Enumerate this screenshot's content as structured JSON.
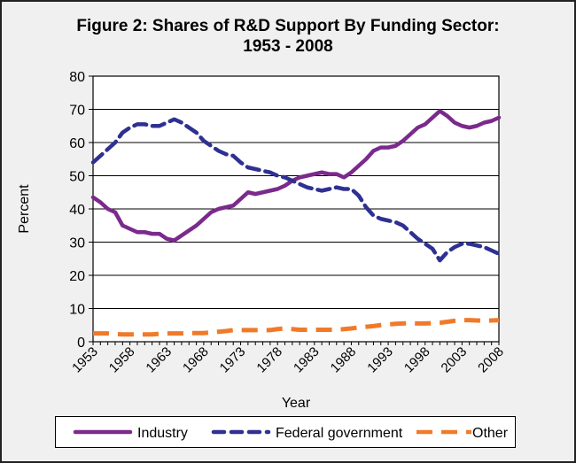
{
  "chart_data": {
    "type": "line",
    "title_line1": "Figure 2: Shares of R&D Support By Funding Sector:",
    "title_line2": "1953 - 2008",
    "xlabel": "Year",
    "ylabel": "Percent",
    "xlim": [
      1953,
      2008
    ],
    "ylim": [
      0,
      80
    ],
    "y_ticks": [
      0,
      10,
      20,
      30,
      40,
      50,
      60,
      70,
      80
    ],
    "x_ticks": [
      1953,
      1958,
      1963,
      1968,
      1973,
      1978,
      1983,
      1988,
      1993,
      1998,
      2003,
      2008
    ],
    "grid": "horizontal",
    "legend": "bottom",
    "x": [
      1953,
      1954,
      1955,
      1956,
      1957,
      1958,
      1959,
      1960,
      1961,
      1962,
      1963,
      1964,
      1965,
      1966,
      1967,
      1968,
      1969,
      1970,
      1971,
      1972,
      1973,
      1974,
      1975,
      1976,
      1977,
      1978,
      1979,
      1980,
      1981,
      1982,
      1983,
      1984,
      1985,
      1986,
      1987,
      1988,
      1989,
      1990,
      1991,
      1992,
      1993,
      1994,
      1995,
      1996,
      1997,
      1998,
      1999,
      2000,
      2001,
      2002,
      2003,
      2004,
      2005,
      2006,
      2007,
      2008
    ],
    "series": [
      {
        "name": "Industry",
        "color": "#7b2a8c",
        "dash": "solid",
        "values": [
          43.5,
          42,
          40,
          39,
          35,
          34,
          33,
          33,
          32.5,
          32.5,
          31,
          30.5,
          32,
          33.5,
          35,
          37,
          39,
          40,
          40.5,
          41,
          43,
          45,
          44.5,
          45,
          45.5,
          46,
          47,
          48.5,
          49.5,
          50,
          50.5,
          51,
          50.5,
          50.5,
          49.5,
          51,
          53,
          55,
          57.5,
          58.5,
          58.5,
          59,
          60.5,
          62.5,
          64.5,
          65.5,
          67.5,
          69.5,
          68,
          66,
          65,
          64.5,
          65,
          66,
          66.5,
          67.5
        ]
      },
      {
        "name": "Federal government",
        "color": "#2e3192",
        "dash": "dashed",
        "values": [
          54,
          56,
          58,
          60,
          63,
          64.5,
          65.5,
          65.5,
          65,
          65,
          66,
          67,
          66,
          64.5,
          63,
          60.5,
          59,
          57.5,
          56.5,
          56,
          54,
          52.5,
          52,
          51.5,
          51,
          50,
          49.5,
          48.5,
          47.5,
          46.5,
          46,
          45.5,
          46,
          46.5,
          46,
          46,
          44,
          40.5,
          38,
          37,
          36.5,
          36,
          35,
          33,
          31,
          29.5,
          28,
          24.5,
          27,
          28.5,
          29.5,
          29.5,
          29,
          28.5,
          27.5,
          26.5
        ]
      },
      {
        "name": "Other",
        "color": "#f07a28",
        "dash": "long-dashed",
        "values": [
          2.5,
          2.5,
          2.5,
          2.3,
          2.2,
          2.2,
          2.2,
          2.2,
          2.2,
          2.4,
          2.5,
          2.5,
          2.5,
          2.6,
          2.6,
          2.6,
          2.8,
          3,
          3.2,
          3.5,
          3.5,
          3.5,
          3.5,
          3.5,
          3.5,
          3.8,
          4,
          3.8,
          3.6,
          3.6,
          3.6,
          3.6,
          3.6,
          3.6,
          3.8,
          4,
          4.3,
          4.5,
          4.7,
          5,
          5.2,
          5.4,
          5.5,
          5.6,
          5.5,
          5.5,
          5.6,
          5.7,
          6,
          6.3,
          6.5,
          6.5,
          6.4,
          6.3,
          6.4,
          6.5
        ]
      }
    ]
  }
}
